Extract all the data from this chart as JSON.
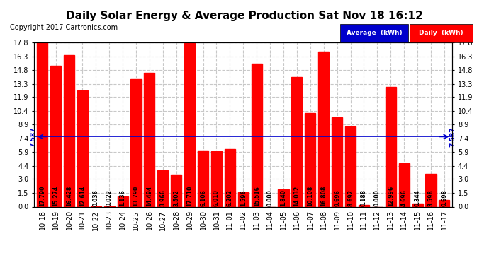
{
  "title": "Daily Solar Energy & Average Production Sat Nov 18 16:12",
  "copyright": "Copyright 2017 Cartronics.com",
  "categories": [
    "10-18",
    "10-19",
    "10-20",
    "10-21",
    "10-22",
    "10-23",
    "10-24",
    "10-25",
    "10-26",
    "10-27",
    "10-28",
    "10-29",
    "10-30",
    "10-31",
    "11-01",
    "11-02",
    "11-03",
    "11-04",
    "11-05",
    "11-06",
    "11-07",
    "11-08",
    "11-09",
    "11-10",
    "11-11",
    "11-12",
    "11-13",
    "11-14",
    "11-15",
    "11-16",
    "11-17"
  ],
  "values": [
    17.79,
    15.274,
    16.428,
    12.614,
    0.036,
    0.022,
    1.136,
    13.79,
    14.494,
    3.966,
    3.502,
    17.71,
    6.106,
    6.01,
    6.202,
    1.596,
    15.516,
    0.0,
    1.84,
    14.032,
    10.108,
    16.808,
    9.696,
    8.692,
    0.188,
    0.0,
    12.996,
    4.696,
    0.344,
    3.598,
    0.698
  ],
  "average": 7.587,
  "bar_color": "#ff0000",
  "avg_line_color": "#0000cc",
  "yticks": [
    0.0,
    1.5,
    3.0,
    4.4,
    5.9,
    7.4,
    8.9,
    10.4,
    11.9,
    13.3,
    14.8,
    16.3,
    17.8
  ],
  "ylim": [
    0.0,
    17.8
  ],
  "bg_color": "#ffffff",
  "grid_color": "#c8c8c8",
  "title_fontsize": 11,
  "copyright_fontsize": 7,
  "bar_label_fontsize": 5.5,
  "tick_fontsize": 7
}
